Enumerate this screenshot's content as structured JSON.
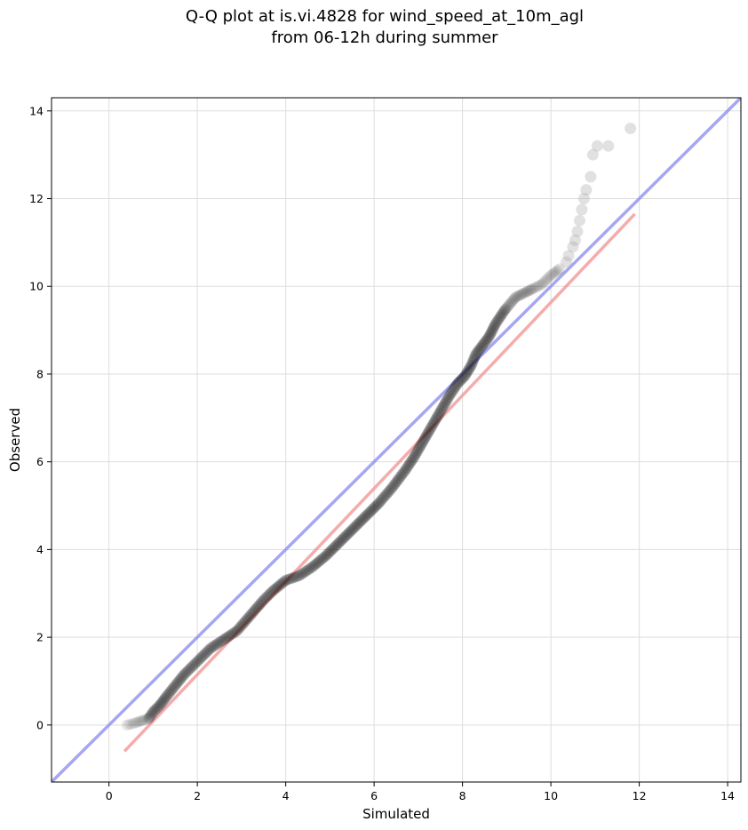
{
  "chart_data": {
    "type": "scatter",
    "title_lines": [
      "Q-Q plot at is.vi.4828 for wind_speed_at_10m_agl",
      "from 06-12h during summer"
    ],
    "xlabel": "Simulated",
    "ylabel": "Observed",
    "xlim": [
      -1.3,
      14.3
    ],
    "ylim": [
      -1.3,
      14.3
    ],
    "xticks": [
      0,
      2,
      4,
      6,
      8,
      10,
      12,
      14
    ],
    "yticks": [
      0,
      2,
      4,
      6,
      8,
      10,
      12,
      14
    ],
    "grid": true,
    "quantile_curve": [
      [
        0.4,
        0.0
      ],
      [
        0.5,
        0.02
      ],
      [
        0.6,
        0.05
      ],
      [
        0.75,
        0.1
      ],
      [
        0.9,
        0.15
      ],
      [
        1.0,
        0.3
      ],
      [
        1.15,
        0.45
      ],
      [
        1.3,
        0.65
      ],
      [
        1.5,
        0.9
      ],
      [
        1.7,
        1.15
      ],
      [
        1.9,
        1.35
      ],
      [
        2.1,
        1.55
      ],
      [
        2.3,
        1.75
      ],
      [
        2.6,
        1.95
      ],
      [
        2.9,
        2.15
      ],
      [
        3.2,
        2.5
      ],
      [
        3.5,
        2.85
      ],
      [
        3.7,
        3.05
      ],
      [
        4.0,
        3.3
      ],
      [
        4.3,
        3.4
      ],
      [
        4.6,
        3.6
      ],
      [
        4.9,
        3.85
      ],
      [
        5.2,
        4.15
      ],
      [
        5.5,
        4.45
      ],
      [
        5.8,
        4.75
      ],
      [
        6.1,
        5.05
      ],
      [
        6.4,
        5.4
      ],
      [
        6.7,
        5.8
      ],
      [
        6.9,
        6.1
      ],
      [
        7.1,
        6.45
      ],
      [
        7.3,
        6.8
      ],
      [
        7.5,
        7.15
      ],
      [
        7.7,
        7.5
      ],
      [
        7.9,
        7.8
      ],
      [
        8.05,
        7.95
      ],
      [
        8.2,
        8.2
      ],
      [
        8.3,
        8.45
      ],
      [
        8.45,
        8.65
      ],
      [
        8.6,
        8.85
      ],
      [
        8.75,
        9.15
      ],
      [
        8.95,
        9.45
      ],
      [
        9.2,
        9.75
      ],
      [
        9.5,
        9.9
      ],
      [
        9.8,
        10.05
      ],
      [
        10.0,
        10.25
      ],
      [
        10.2,
        10.4
      ]
    ],
    "tail_points": [
      [
        10.35,
        10.55
      ],
      [
        10.4,
        10.7
      ],
      [
        10.5,
        10.9
      ],
      [
        10.55,
        11.05
      ],
      [
        10.6,
        11.25
      ],
      [
        10.65,
        11.5
      ],
      [
        10.7,
        11.75
      ],
      [
        10.75,
        12.0
      ],
      [
        10.8,
        12.2
      ],
      [
        10.9,
        12.5
      ],
      [
        10.95,
        13.0
      ],
      [
        11.05,
        13.2
      ],
      [
        11.3,
        13.2
      ],
      [
        11.8,
        13.6
      ]
    ],
    "lines": [
      {
        "label_type": "identity",
        "points": [
          [
            -1.3,
            -1.3
          ],
          [
            14.3,
            14.3
          ]
        ],
        "color": "#8888ee"
      },
      {
        "label_type": "fit",
        "points": [
          [
            0.35,
            -0.6
          ],
          [
            11.9,
            11.65
          ]
        ],
        "color": "#f09090"
      }
    ],
    "colors": {
      "points": "#000000",
      "tail_points": "#aaaaaa",
      "axes": "#000000",
      "grid": "#dddddd"
    }
  }
}
